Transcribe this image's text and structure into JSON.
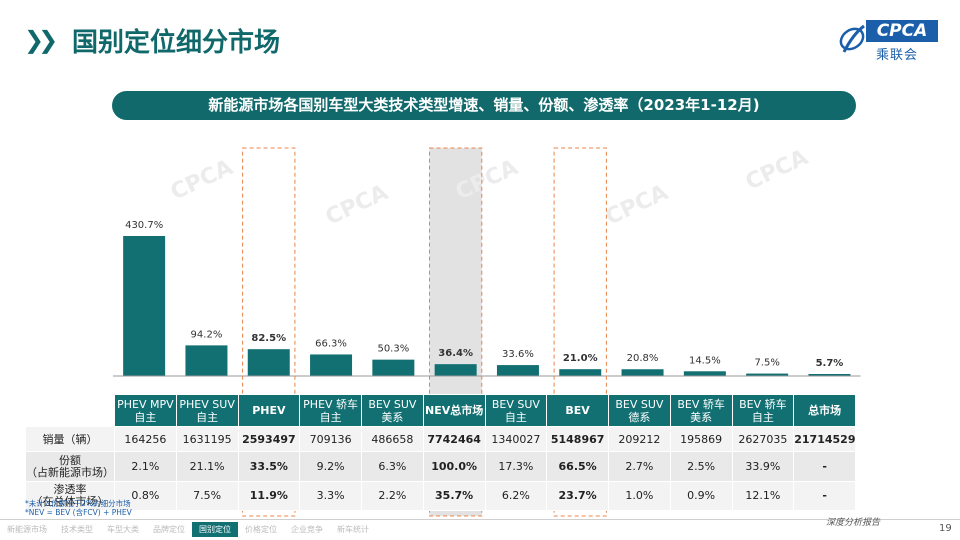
{
  "header": {
    "page_title": "国别定位细分市场",
    "logo_text": "CPCA",
    "logo_cn": "乘联会"
  },
  "subtitle": "新能源市场各国别车型大类技术类型增速、销量、份额、渗透率（2023年1-12月)",
  "chart_data": {
    "type": "bar",
    "title": "新能源市场各国别车型大类技术类型增速、销量、份额、渗透率（2023年1-12月)",
    "categories": [
      "PHEV MPV 自主",
      "PHEV SUV 自主",
      "PHEV",
      "PHEV 轿车 自主",
      "BEV SUV 美系",
      "NEV总市场",
      "BEV SUV 自主",
      "BEV",
      "BEV SUV 德系",
      "BEV 轿车 美系",
      "BEV 轿车 自主",
      "总市场"
    ],
    "series": [
      {
        "values": [
          430.7,
          94.2,
          82.5,
          66.3,
          50.3,
          36.4,
          33.6,
          21.0,
          20.8,
          14.5,
          7.5,
          5.7
        ]
      }
    ],
    "value_labels": [
      "430.7%",
      "94.2%",
      "82.5%",
      "66.3%",
      "50.3%",
      "36.4%",
      "33.6%",
      "21.0%",
      "20.8%",
      "14.5%",
      "7.5%",
      "5.7%"
    ],
    "bold_categories": [
      2,
      5,
      7,
      11
    ],
    "highlighted_categories": [
      2,
      5,
      7
    ],
    "unit": "%",
    "bar_color": "#127073",
    "highlight_box_color": "#e8844a",
    "nev_shade_color": "#e2e2e2"
  },
  "table": {
    "headers": [
      [
        "PHEV MPV",
        "自主"
      ],
      [
        "PHEV SUV",
        "自主"
      ],
      [
        "PHEV"
      ],
      [
        "PHEV 轿车",
        "自主"
      ],
      [
        "BEV SUV",
        "美系"
      ],
      [
        "NEV总市场"
      ],
      [
        "BEV SUV",
        "自主"
      ],
      [
        "BEV"
      ],
      [
        "BEV SUV",
        "德系"
      ],
      [
        "BEV 轿车",
        "美系"
      ],
      [
        "BEV 轿车",
        "自主"
      ],
      [
        "总市场"
      ]
    ],
    "rows": [
      {
        "label": [
          "销量（辆）"
        ],
        "values": [
          "164256",
          "1631195",
          "2593497",
          "709136",
          "486658",
          "7742464",
          "1340027",
          "5148967",
          "209212",
          "195869",
          "2627035",
          "21714529"
        ]
      },
      {
        "label": [
          "份额",
          "（占新能源市场）"
        ],
        "values": [
          "2.1%",
          "21.1%",
          "33.5%",
          "9.2%",
          "6.3%",
          "100.0%",
          "17.3%",
          "66.5%",
          "2.7%",
          "2.5%",
          "33.9%",
          "-"
        ]
      },
      {
        "label": [
          "渗透率",
          "（在总体市场）"
        ],
        "values": [
          "0.8%",
          "7.5%",
          "11.9%",
          "3.3%",
          "2.2%",
          "35.7%",
          "6.2%",
          "23.7%",
          "1.0%",
          "0.9%",
          "12.1%",
          "-"
        ]
      }
    ]
  },
  "notes": [
    "*未计入份额低于2%的细分市场",
    "*NEV = BEV (含FCV) + PHEV"
  ],
  "footer": {
    "nav": [
      "新能源市场",
      "技术类型",
      "车型大类",
      "品牌定位",
      "国别定位",
      "价格定位",
      "企业竞争",
      "新车统计"
    ],
    "active_index": 4,
    "tagline": "深度分析报告",
    "page_number": "19"
  }
}
